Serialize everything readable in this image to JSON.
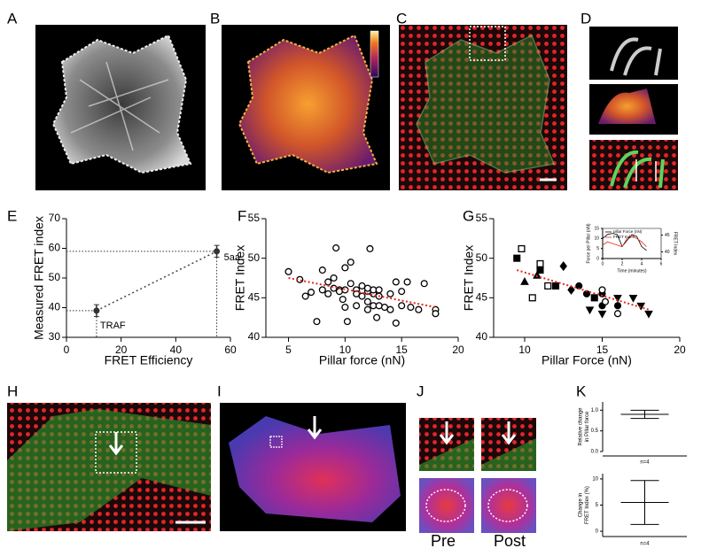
{
  "panels": {
    "labels": [
      "A",
      "B",
      "C",
      "D",
      "E",
      "F",
      "G",
      "H",
      "I",
      "J",
      "K"
    ]
  },
  "panel_J": {
    "pre": "Pre",
    "post": "Post"
  },
  "chart_data": [
    {
      "type": "errorbar",
      "xlabel": "FRET Efficiency",
      "ylabel": "Measured FRET index",
      "x": [
        11,
        55
      ],
      "values": [
        39,
        59
      ],
      "errors": [
        2,
        2
      ],
      "point_labels": [
        "TRAF",
        "5aa"
      ],
      "color": "#333333",
      "xlim": [
        0,
        60
      ],
      "ylim": [
        30,
        70
      ],
      "xticks": [
        0,
        20,
        40,
        60
      ],
      "yticks": [
        30,
        40,
        50,
        60,
        70
      ]
    },
    {
      "type": "scatter",
      "xlabel": "Pillar force (nN)",
      "ylabel": "FRET Index",
      "xlim": [
        3,
        20
      ],
      "ylim": [
        40,
        55
      ],
      "xticks": [
        5,
        10,
        15,
        20
      ],
      "yticks": [
        40,
        45,
        50,
        55
      ],
      "series": [
        {
          "marker": "open-circle",
          "color": "#000000",
          "x": [
            5,
            6,
            6.5,
            7,
            7.5,
            8,
            8,
            8.5,
            8.5,
            9,
            9,
            9.2,
            9.5,
            9.5,
            9.8,
            10,
            10,
            10,
            10.2,
            10.5,
            10.5,
            11,
            11,
            11,
            11.5,
            11.5,
            12,
            12,
            12,
            12,
            12.2,
            12.5,
            12.5,
            12.5,
            12.8,
            13,
            13,
            13,
            13.5,
            14,
            14,
            14.5,
            14.5,
            15,
            15,
            15.5,
            15.8,
            16.5,
            17,
            18,
            18
          ],
          "values": [
            48.3,
            47.3,
            45.2,
            45.7,
            42,
            46,
            48.5,
            47,
            45.5,
            47.5,
            46.2,
            51.3,
            46,
            45.8,
            44.8,
            48.8,
            46,
            43.8,
            42,
            46.8,
            49.5,
            46,
            45.5,
            44,
            46.5,
            45.2,
            45.8,
            46.2,
            44.5,
            43.5,
            51.2,
            45.5,
            46,
            44,
            42.5,
            45.2,
            46,
            44,
            43.8,
            43.5,
            45.5,
            47,
            41.8,
            44,
            45.8,
            47,
            43.8,
            43.5,
            46.8,
            43.5,
            43
          ]
        }
      ],
      "trendline": {
        "x": [
          5,
          18
        ],
        "values": [
          47.5,
          43.8
        ],
        "color": "#e8281e"
      }
    },
    {
      "type": "scatter",
      "xlabel": "Pillar Force (nN)",
      "ylabel": "FRET Index",
      "xlim": [
        8,
        20
      ],
      "ylim": [
        40,
        55
      ],
      "xticks": [
        10,
        15,
        20
      ],
      "yticks": [
        40,
        45,
        50,
        55
      ],
      "series": [
        {
          "marker": "open-square",
          "color": "#000000",
          "x": [
            9.8,
            10.5,
            11,
            11.5
          ],
          "values": [
            51.2,
            45,
            49.3,
            46.5
          ]
        },
        {
          "marker": "square",
          "color": "#000000",
          "x": [
            9.5,
            11,
            12,
            14.5
          ],
          "values": [
            50,
            48.5,
            46.5,
            45
          ]
        },
        {
          "marker": "triangle",
          "color": "#000000",
          "x": [
            10,
            10.8
          ],
          "values": [
            47,
            47.8
          ]
        },
        {
          "marker": "diamond",
          "color": "#000000",
          "x": [
            12.5,
            13
          ],
          "values": [
            49,
            46
          ]
        },
        {
          "marker": "circle",
          "color": "#000000",
          "x": [
            13.5,
            14,
            15,
            15,
            16
          ],
          "values": [
            46.5,
            45.5,
            44,
            45.5,
            44
          ]
        },
        {
          "marker": "open-circle",
          "color": "#000000",
          "x": [
            15,
            15.2,
            16
          ],
          "values": [
            46,
            44.5,
            43
          ]
        },
        {
          "marker": "down-triangle",
          "color": "#000000",
          "x": [
            14.2,
            15,
            16,
            17,
            17.5,
            18
          ],
          "values": [
            43.5,
            43,
            45,
            45,
            44,
            43
          ]
        }
      ],
      "trendline": {
        "x": [
          9.5,
          18
        ],
        "values": [
          48.5,
          43.5
        ],
        "color": "#e8281e"
      }
    },
    {
      "type": "line",
      "xlabel": "Time (minutes)",
      "ylabel": "Force per Pillar (nN)",
      "y2label": "FRET Index",
      "frame": true,
      "xlim": [
        0,
        6
      ],
      "ylim": [
        0,
        15
      ],
      "y2lim": [
        38,
        47
      ],
      "xticks": [
        0,
        2,
        4,
        6
      ],
      "yticks": [
        0,
        5,
        10,
        15
      ],
      "y2ticks": [
        40,
        45
      ],
      "series": [
        {
          "name": "pillar Force (nN)",
          "color": "#000000",
          "x": [
            0,
            0.5,
            1,
            1.5,
            2,
            2.5,
            3,
            3.5,
            4,
            4.5
          ],
          "values": [
            10,
            12,
            12.5,
            12,
            6,
            9,
            12,
            11,
            6,
            4
          ]
        },
        {
          "name": "FRET Index",
          "color": "#e8281e",
          "axis": "y2",
          "x": [
            0,
            0.5,
            1,
            1.5,
            2,
            2.5,
            3,
            3.5,
            4,
            4.5
          ],
          "values": [
            42,
            43,
            42.5,
            42,
            41.5,
            44,
            45,
            44,
            43,
            41.5
          ]
        }
      ]
    },
    {
      "type": "errorbar",
      "xlabel": "n=4",
      "ylabel": [
        "Relative change",
        "in Pillar force"
      ],
      "values": [
        0.9
      ],
      "errors": [
        0.1
      ],
      "color": "#000000",
      "ylim": [
        0,
        1.2
      ],
      "yticks": [
        {
          "value": 0,
          "label": "0.0"
        },
        {
          "value": 0.5,
          "label": "0.5"
        },
        {
          "value": 1,
          "label": "1.0"
        }
      ]
    },
    {
      "type": "errorbar",
      "xlabel": "n=4",
      "ylabel": [
        "Change in",
        "FRET Index (%)"
      ],
      "values": [
        5.5
      ],
      "errors": [
        4.2
      ],
      "color": "#000000",
      "ylim": [
        -1,
        11
      ],
      "yticks": [
        0,
        5,
        10
      ]
    }
  ]
}
